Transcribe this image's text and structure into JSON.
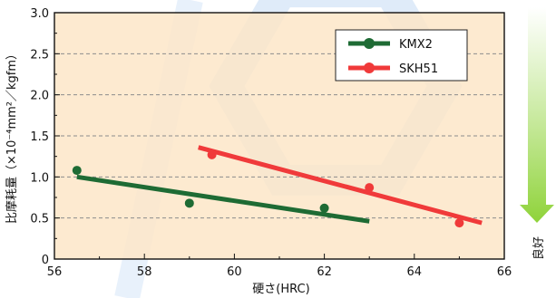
{
  "chart_data": {
    "type": "scatter",
    "xlabel": "硬さ(HRC)",
    "ylabel": "比摩耗量（×10⁻⁴mm²／kgfm）",
    "xlim": [
      56,
      66
    ],
    "ylim": [
      0,
      3.0
    ],
    "xticks": [
      "56",
      "58",
      "60",
      "62",
      "64",
      "66"
    ],
    "yticks": [
      "0",
      "0.5",
      "1.0",
      "1.5",
      "2.0",
      "2.5",
      "3.0"
    ],
    "grid": true,
    "legend_position": "top-right",
    "series": [
      {
        "name": "KMX2",
        "color": "#1e6b34",
        "points": [
          {
            "x": 56.5,
            "y": 1.08
          },
          {
            "x": 59.0,
            "y": 0.68
          },
          {
            "x": 62.0,
            "y": 0.62
          }
        ],
        "trend": [
          {
            "x": 56.5,
            "y": 1.0
          },
          {
            "x": 63.0,
            "y": 0.46
          }
        ]
      },
      {
        "name": "SKH51",
        "color": "#f03a3a",
        "points": [
          {
            "x": 59.5,
            "y": 1.27
          },
          {
            "x": 63.0,
            "y": 0.87
          },
          {
            "x": 65.0,
            "y": 0.44
          }
        ],
        "trend": [
          {
            "x": 59.2,
            "y": 1.36
          },
          {
            "x": 65.5,
            "y": 0.44
          }
        ]
      }
    ],
    "arrow_label": "良好",
    "plot_bg": "#fde6c8",
    "watermark_color": "#4d8fe0",
    "arrow_color": "#8fd33a"
  }
}
